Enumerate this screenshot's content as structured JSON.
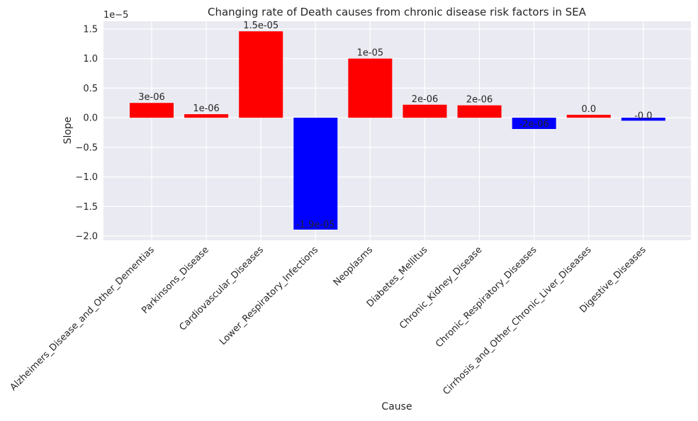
{
  "chart_data": {
    "type": "bar",
    "title": "Changing rate of Death causes from chronic disease risk factors in SEA",
    "xlabel": "Cause",
    "ylabel": "Slope",
    "y_offset_label": "1e−5",
    "ylim": [
      -2.07e-05,
      1.63e-05
    ],
    "yticks": [
      -2e-05,
      -1.5e-05,
      -1e-05,
      -5e-06,
      0.0,
      5e-06,
      1e-05,
      1.5e-05
    ],
    "ytick_labels": [
      "−2.0",
      "−1.5",
      "−1.0",
      "−0.5",
      "0.0",
      "0.5",
      "1.0",
      "1.5"
    ],
    "grid": true,
    "categories": [
      "Alzheimers_Disease_and_Other_Dementias",
      "Parkinsons_Disease",
      "Cardiovascular_Diseases",
      "Lower_Respiratory_Infections",
      "Neoplasms",
      "Diabetes_Mellitus",
      "Chronic_Kidney_Disease",
      "Chronic_Respiratory_Diseases",
      "Cirrhosis_and_Other_Chronic_Liver_Diseases",
      "Digestive_Diseases"
    ],
    "values": [
      2.5e-06,
      6e-07,
      1.46e-05,
      -1.89e-05,
      1e-05,
      2.2e-06,
      2.1e-06,
      -1.9e-06,
      5e-07,
      -5e-07
    ],
    "data_labels": [
      "3e-06",
      "1e-06",
      "1.5e-05",
      "-1.9e-05",
      "1e-05",
      "2e-06",
      "2e-06",
      "-2e-06",
      "0.0",
      "-0.0"
    ],
    "colors": {
      "positive": "#ff0000",
      "negative": "#0000ff",
      "plot_background": "#eaeaf2",
      "grid": "#ffffff"
    }
  }
}
